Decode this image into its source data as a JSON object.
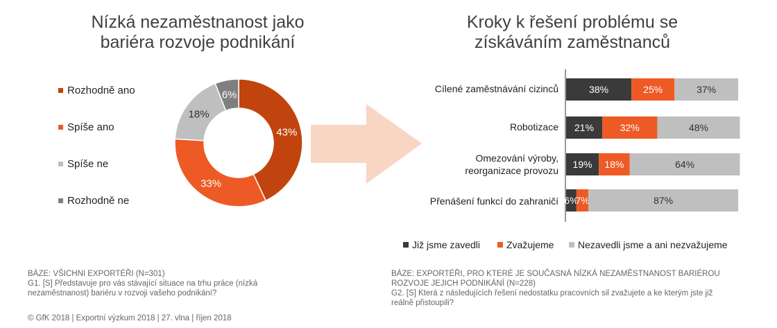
{
  "colors": {
    "dark_orange": "#C1440E",
    "orange": "#EE5A25",
    "light_gray": "#BFBFBF",
    "dark_gray": "#7F7F7F",
    "charcoal": "#3A3A3A",
    "arrow": "#F9D5C4"
  },
  "left": {
    "title_lines": [
      "Nízká nezaměstnanost jako",
      "bariéra rozvoje podnikání"
    ],
    "legend": [
      {
        "label": "Rozhodně ano",
        "color": "#C1440E"
      },
      {
        "label": "Spíše ano",
        "color": "#EE5A25"
      },
      {
        "label": "Spíše ne",
        "color": "#BFBFBF"
      },
      {
        "label": "Rozhodně ne",
        "color": "#7F7F7F"
      }
    ],
    "notes": {
      "base": "BÁZE: VŠICHNI EXPORTÉŘI (N=301)",
      "question_lines": [
        "G1. [S] Představuje pro vás stávající situace na trhu práce (nízká",
        "nezaměstnanost) bariéru v rozvoji vašeho podnikání?"
      ],
      "footer": "© GfK 2018 | Exportní výzkum 2018 | 27. vlna | říjen 2018"
    }
  },
  "right": {
    "title_lines": [
      "Kroky k řešení problému se",
      "získáváním zaměstnanců"
    ],
    "legend": [
      {
        "label": "Již jsme zavedli",
        "color": "#3A3A3A"
      },
      {
        "label": "Zvažujeme",
        "color": "#EE5A25"
      },
      {
        "label": "Nezavedli jsme a ani nezvažujeme",
        "color": "#BFBFBF"
      }
    ],
    "notes": {
      "base_lines": [
        "BÁZE: EXPORTÉŘI, PRO KTERÉ JE SOUČASNÁ NÍZKÁ NEZAMĚSTNANOST BARIÉROU",
        "ROZVOJE JEJICH PODNIKÁNÍ (N=228)"
      ],
      "question_lines": [
        "G2. [S] Která z následujících řešení nedostatku pracovních sil zvažujete a ke kterým jste již",
        "reálně přistoupili?"
      ]
    }
  },
  "chart_data": [
    {
      "type": "pie",
      "variant": "donut",
      "title": "Nízká nezaměstnanost jako bariéra rozvoje podnikání",
      "categories": [
        "Rozhodně ano",
        "Spíše ano",
        "Spíše ne",
        "Rozhodně ne"
      ],
      "values": [
        43,
        33,
        18,
        6
      ],
      "labels": [
        "43%",
        "33%",
        "18%",
        "6%"
      ],
      "colors": [
        "#C1440E",
        "#EE5A25",
        "#BFBFBF",
        "#7F7F7F"
      ],
      "legend": "left"
    },
    {
      "type": "bar",
      "orientation": "horizontal",
      "stacked": true,
      "title": "Kroky k řešení problému se získáváním zaměstnanců",
      "categories": [
        {
          "lines": [
            "Cílené zaměstnávání cizinců"
          ]
        },
        {
          "lines": [
            "Robotizace"
          ]
        },
        {
          "lines": [
            "Omezování výroby,",
            "reorganizace provozu"
          ]
        },
        {
          "lines": [
            "Přenášení funkcí do zahraničí"
          ]
        }
      ],
      "series": [
        {
          "name": "Již jsme zavedli",
          "color": "#3A3A3A",
          "values": [
            38,
            21,
            19,
            6
          ],
          "labels": [
            "38%",
            "21%",
            "19%",
            "6%"
          ]
        },
        {
          "name": "Zvažujeme",
          "color": "#EE5A25",
          "values": [
            25,
            32,
            18,
            7
          ],
          "labels": [
            "25%",
            "32%",
            "18%",
            "7%"
          ]
        },
        {
          "name": "Nezavedli jsme a ani nezvažujeme",
          "color": "#BFBFBF",
          "values": [
            37,
            48,
            64,
            87
          ],
          "labels": [
            "37%",
            "48%",
            "64%",
            "87%"
          ]
        }
      ],
      "xlim": [
        0,
        100
      ],
      "legend": "bottom"
    }
  ]
}
